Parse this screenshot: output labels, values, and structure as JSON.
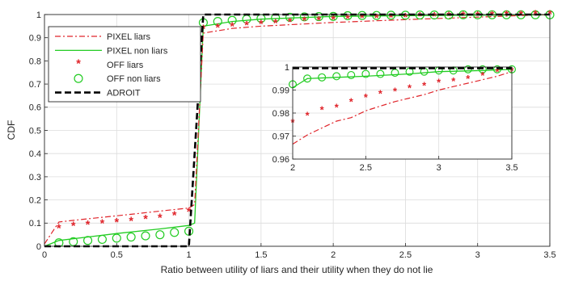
{
  "chart_data": [
    {
      "type": "line",
      "xlabel": "Ratio between utility of liars and their utility when they do not lie",
      "ylabel": "CDF",
      "xlim": [
        0,
        3.5
      ],
      "ylim": [
        0,
        1
      ],
      "xticks": [
        "0",
        "0.5",
        "1",
        "1.5",
        "2",
        "2.5",
        "3",
        "3.5"
      ],
      "yticks": [
        "0",
        "0.1",
        "0.2",
        "0.3",
        "0.4",
        "0.5",
        "0.6",
        "0.7",
        "0.8",
        "0.9",
        "1"
      ],
      "grid": true,
      "legend_position": "top-left",
      "series": [
        {
          "name": "PIXEL liars",
          "style": "dash-dot",
          "color": "#e0242a",
          "x": [
            0,
            0.1,
            0.2,
            0.4,
            0.6,
            0.8,
            1.0,
            1.04,
            1.1,
            1.3,
            1.5,
            2.0,
            2.5,
            3.0,
            3.5
          ],
          "y": [
            0.01,
            0.105,
            0.112,
            0.125,
            0.138,
            0.152,
            0.165,
            0.18,
            0.92,
            0.94,
            0.95,
            0.966,
            0.978,
            0.989,
            1.0
          ]
        },
        {
          "name": "PIXEL non liars",
          "style": "solid",
          "color": "#22cc22",
          "x": [
            0,
            0.1,
            0.3,
            0.5,
            0.8,
            1.0,
            1.04,
            1.1,
            1.3,
            1.5,
            2.0,
            2.5,
            3.0,
            3.5
          ],
          "y": [
            0,
            0.025,
            0.04,
            0.055,
            0.075,
            0.09,
            0.1,
            0.95,
            0.97,
            0.98,
            0.992,
            0.995,
            0.997,
            0.999
          ]
        },
        {
          "name": "OFF liars",
          "style": "star",
          "color": "#e0242a",
          "x": [
            0.1,
            0.2,
            0.3,
            0.4,
            0.5,
            0.6,
            0.7,
            0.8,
            0.9,
            1.0,
            1.1,
            1.2,
            1.3,
            1.4,
            1.5,
            1.6,
            1.7,
            1.8,
            1.9,
            2.0,
            2.1,
            2.2,
            2.3,
            2.4,
            2.5,
            2.6,
            2.7,
            2.8,
            2.9,
            3.0,
            3.1,
            3.2,
            3.3,
            3.4,
            3.5
          ],
          "y": [
            0.075,
            0.085,
            0.09,
            0.095,
            0.1,
            0.105,
            0.115,
            0.12,
            0.13,
            0.145,
            0.935,
            0.94,
            0.945,
            0.95,
            0.955,
            0.96,
            0.965,
            0.97,
            0.972,
            0.975,
            0.978,
            0.981,
            0.982,
            0.984,
            0.986,
            0.988,
            0.989,
            0.99,
            0.992,
            0.993,
            0.994,
            0.995,
            0.996,
            0.997,
            0.998
          ]
        },
        {
          "name": "OFF non liars",
          "style": "circle",
          "color": "#22cc22",
          "x": [
            0.1,
            0.2,
            0.3,
            0.4,
            0.5,
            0.6,
            0.7,
            0.8,
            0.9,
            1.0,
            1.1,
            1.2,
            1.3,
            1.4,
            1.5,
            1.6,
            1.7,
            1.8,
            1.9,
            2.0,
            2.1,
            2.2,
            2.3,
            2.4,
            2.5,
            2.6,
            2.7,
            2.8,
            2.9,
            3.0,
            3.1,
            3.2,
            3.3,
            3.4,
            3.5
          ],
          "y": [
            0.015,
            0.02,
            0.025,
            0.03,
            0.035,
            0.04,
            0.045,
            0.05,
            0.06,
            0.065,
            0.965,
            0.97,
            0.975,
            0.98,
            0.983,
            0.986,
            0.988,
            0.99,
            0.991,
            0.992,
            0.995,
            0.996,
            0.996,
            0.997,
            0.997,
            0.998,
            0.998,
            0.998,
            0.999,
            0.999,
            0.999,
            0.999,
            0.999,
            0.999,
            0.999
          ]
        },
        {
          "name": "ADROIT",
          "style": "dashed",
          "color": "#000000",
          "x": [
            0,
            1.0,
            1.1,
            3.5
          ],
          "y": [
            0,
            0,
            1.0,
            1.0
          ]
        }
      ]
    },
    {
      "type": "line",
      "inset": true,
      "xlim": [
        2,
        3.5
      ],
      "ylim": [
        0.96,
        1
      ],
      "xticks": [
        "2",
        "2.5",
        "3",
        "3.5"
      ],
      "yticks": [
        "0.96",
        "0.97",
        "0.98",
        "0.99",
        "1"
      ],
      "grid": true,
      "series": [
        {
          "name": "PIXEL liars",
          "style": "dash-dot",
          "color": "#e0242a",
          "x": [
            2.0,
            2.1,
            2.2,
            2.3,
            2.4,
            2.5,
            2.6,
            2.7,
            2.8,
            2.9,
            3.0,
            3.1,
            3.2,
            3.3,
            3.4,
            3.5
          ],
          "y": [
            0.9665,
            0.9705,
            0.9735,
            0.9765,
            0.978,
            0.981,
            0.983,
            0.985,
            0.9865,
            0.988,
            0.99,
            0.9915,
            0.993,
            0.9945,
            0.996,
            0.998
          ]
        },
        {
          "name": "PIXEL non liars",
          "style": "solid",
          "color": "#22cc22",
          "x": [
            2.0,
            2.05,
            2.1,
            2.3,
            2.5,
            2.8,
            3.0,
            3.3,
            3.5
          ],
          "y": [
            0.991,
            0.993,
            0.995,
            0.9955,
            0.996,
            0.997,
            0.998,
            0.9985,
            0.999
          ]
        },
        {
          "name": "OFF liars",
          "style": "star",
          "color": "#e0242a",
          "x": [
            2.0,
            2.1,
            2.2,
            2.3,
            2.4,
            2.5,
            2.6,
            2.7,
            2.8,
            2.9,
            3.0,
            3.1,
            3.2,
            3.3,
            3.4,
            3.5
          ],
          "y": [
            0.9755,
            0.9785,
            0.981,
            0.982,
            0.9845,
            0.9865,
            0.988,
            0.989,
            0.9905,
            0.9915,
            0.993,
            0.9935,
            0.9945,
            0.996,
            0.9975,
            0.998
          ]
        },
        {
          "name": "OFF non liars",
          "style": "circle",
          "color": "#22cc22",
          "x": [
            2.0,
            2.1,
            2.2,
            2.3,
            2.4,
            2.5,
            2.6,
            2.7,
            2.8,
            2.9,
            3.0,
            3.1,
            3.2,
            3.3,
            3.4,
            3.5
          ],
          "y": [
            0.9925,
            0.995,
            0.9955,
            0.996,
            0.9965,
            0.997,
            0.997,
            0.9975,
            0.998,
            0.998,
            0.9985,
            0.9985,
            0.999,
            0.999,
            0.999,
            0.999
          ]
        },
        {
          "name": "ADROIT",
          "style": "dashed",
          "color": "#000000",
          "x": [
            2.0,
            3.5
          ],
          "y": [
            0.9995,
            0.9995
          ]
        }
      ]
    }
  ]
}
